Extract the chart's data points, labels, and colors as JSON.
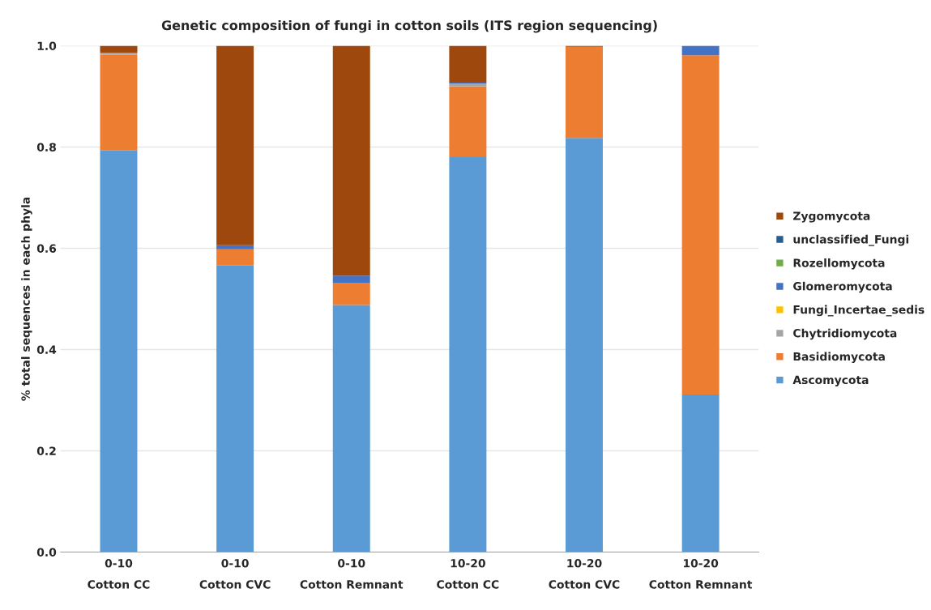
{
  "chart_data": {
    "type": "bar",
    "title": "Genetic composition of fungi in cotton soils (ITS region sequencing)",
    "ylabel": "% total sequences in each phyla",
    "categories": [
      "0-10\nCotton CC",
      "0-10\nCotton CVC",
      "0-10\nCotton Remnant",
      "10-20\nCotton CC",
      "10-20\nCotton CVC",
      "10-20\nCotton Remnant"
    ],
    "stacked": true,
    "series": [
      {
        "name": "Ascomycota",
        "color": "#5b9bd5",
        "values": [
          0.793,
          0.566,
          0.488,
          0.78,
          0.818,
          0.311
        ]
      },
      {
        "name": "Basidiomycota",
        "color": "#ed7d31",
        "values": [
          0.189,
          0.032,
          0.044,
          0.14,
          0.18,
          0.67
        ]
      },
      {
        "name": "Chytridiomycota",
        "color": "#a5a5a5",
        "values": [
          0.004,
          0,
          0,
          0.005,
          0,
          0
        ]
      },
      {
        "name": "Fungi_Incertae_sedis",
        "color": "#ffc000",
        "values": [
          0,
          0,
          0,
          0,
          0,
          0
        ]
      },
      {
        "name": "Glomeromycota",
        "color": "#4472c4",
        "values": [
          0,
          0.008,
          0.014,
          0.002,
          0,
          0.019
        ]
      },
      {
        "name": "Rozellomycota",
        "color": "#70ad47",
        "values": [
          0,
          0,
          0,
          0,
          0,
          0
        ]
      },
      {
        "name": "unclassified_Fungi",
        "color": "#255e91",
        "values": [
          0,
          0,
          0,
          0,
          0,
          0
        ]
      },
      {
        "name": "Zygomycota",
        "color": "#9e480e",
        "values": [
          0.014,
          0.394,
          0.454,
          0.073,
          0.002,
          0
        ]
      }
    ],
    "ylim": [
      0,
      1.0
    ],
    "yticks": [
      {
        "value": 0,
        "label": "0.0"
      },
      {
        "value": 0.2,
        "label": "0.2"
      },
      {
        "value": 0.4,
        "label": "0.4"
      },
      {
        "value": 0.6,
        "label": "0.6"
      },
      {
        "value": 0.8,
        "label": "0.8"
      },
      {
        "value": 1.0,
        "label": "1.0"
      }
    ],
    "grid": "y",
    "legend": "right"
  }
}
